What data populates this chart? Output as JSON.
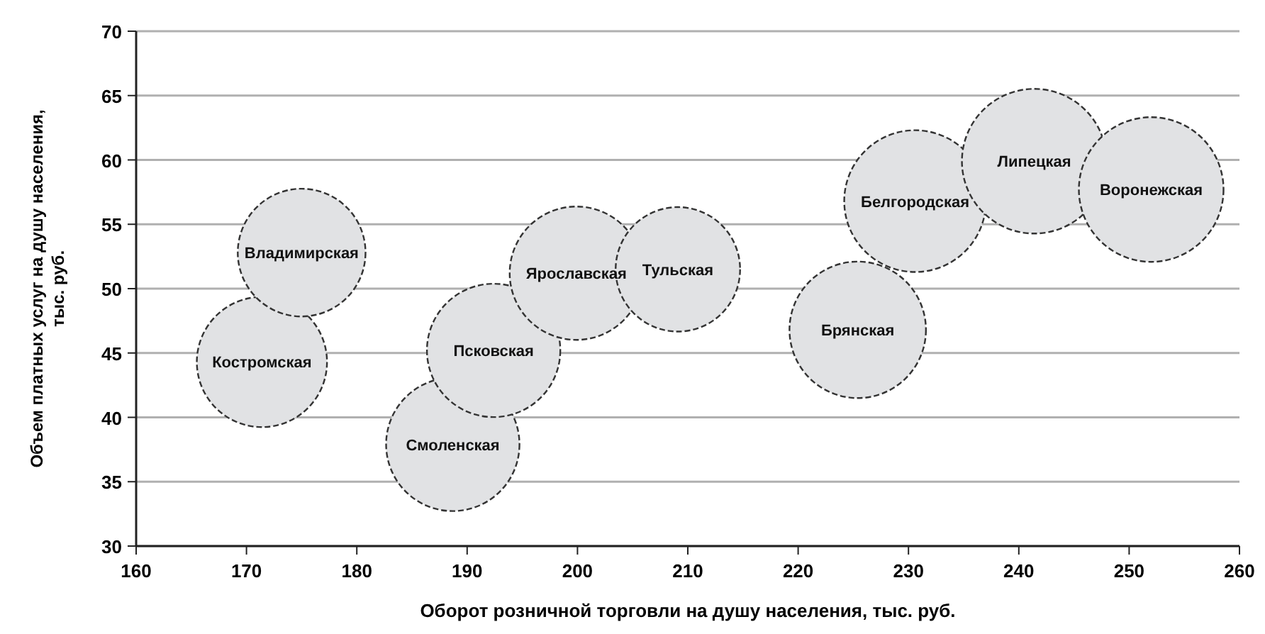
{
  "chart_data": {
    "type": "bubble",
    "xlabel": "Оборот розничной торговли на душу населения, тыс. руб.",
    "ylabel": "Объем платных услуг на душу населения, тыс. руб.",
    "series": [
      {
        "color": "#e1e2e4",
        "x": [
          171.4,
          175.0,
          188.7,
          192.4,
          199.9,
          209.1,
          225.4,
          230.6,
          241.4,
          252.0
        ],
        "values": [
          44.3,
          52.8,
          37.9,
          45.2,
          51.2,
          51.5,
          46.8,
          56.8,
          59.9,
          57.7
        ],
        "sizes": [
          0.81,
          0.78,
          0.85,
          0.85,
          0.85,
          0.74,
          0.89,
          0.96,
          1,
          1
        ],
        "value_labels": [
          "Костромская",
          "Владимирская",
          "Смоленская",
          "Псковская",
          "Ярославская",
          "Тульская",
          "Брянская",
          "Белгородская",
          "Липецкая",
          "Воронежская"
        ]
      }
    ],
    "xlim": [
      160,
      260
    ],
    "xticks": [
      160,
      170,
      180,
      190,
      200,
      210,
      220,
      230,
      240,
      250,
      260
    ],
    "ylim": [
      30,
      70
    ],
    "yticks": [
      30,
      35,
      40,
      45,
      50,
      55,
      60,
      65,
      70
    ],
    "grid": "y",
    "line_style": "dashed"
  }
}
